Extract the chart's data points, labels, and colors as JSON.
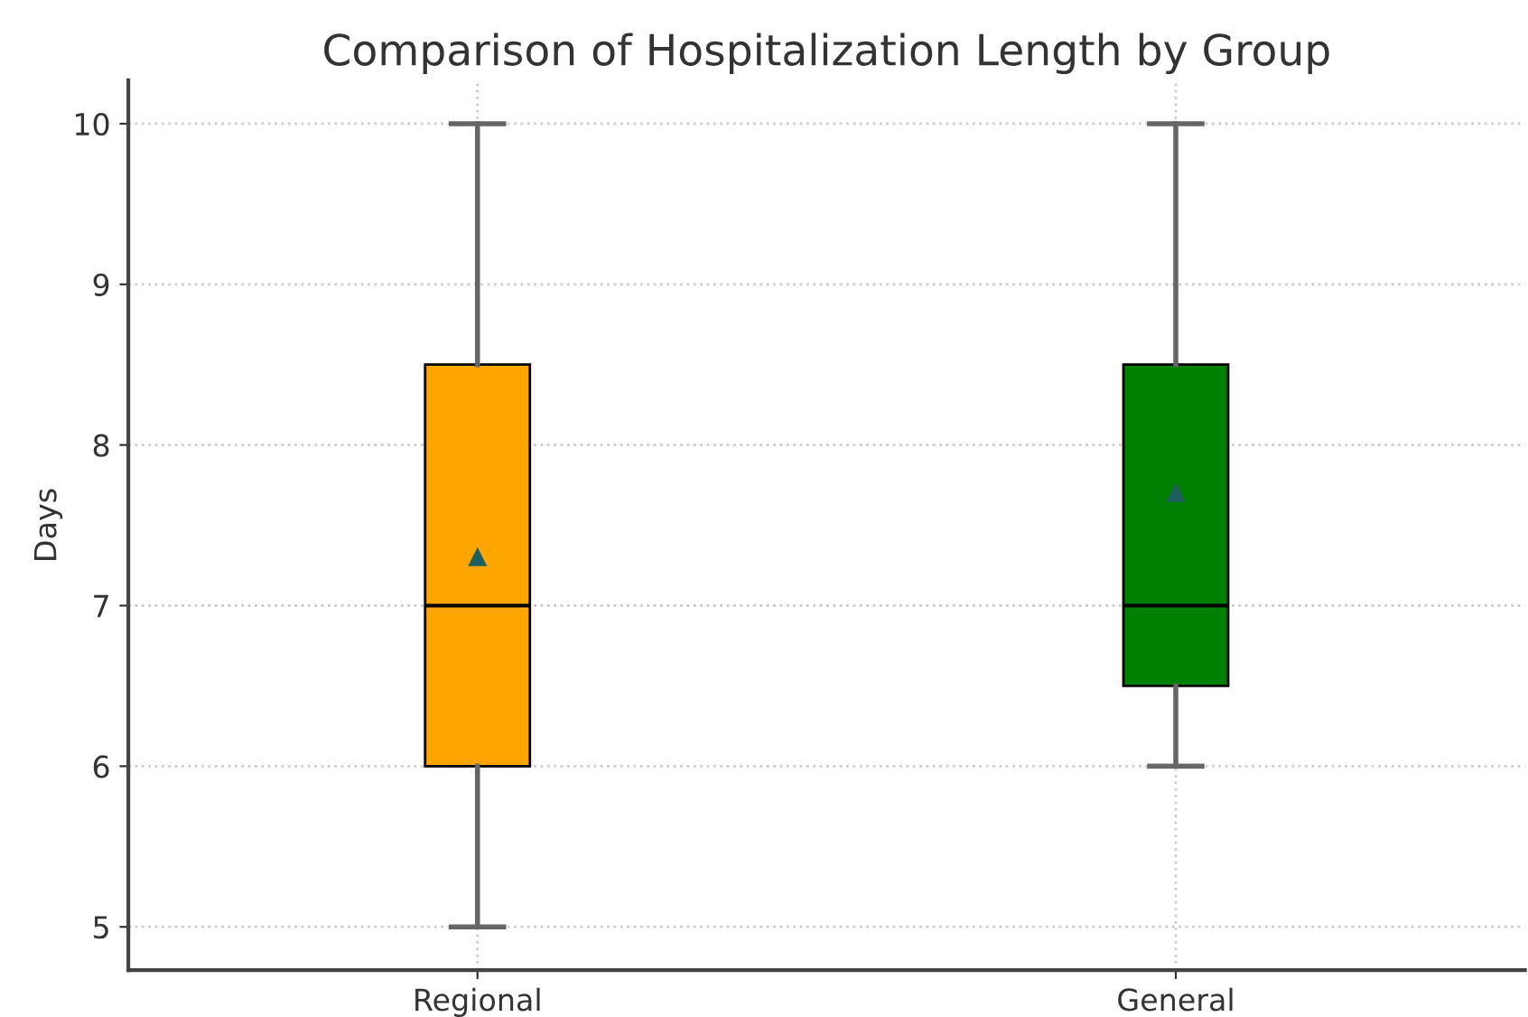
{
  "chart_data": {
    "type": "box",
    "title": "Comparison of Hospitalization Length by Group",
    "ylabel": "Days",
    "categories": [
      "Regional",
      "General"
    ],
    "series": [
      {
        "color": "#ffa500",
        "boxes": [
          {
            "low": 5,
            "q1": 6,
            "median": 7,
            "q3": 8.5,
            "high": 10,
            "mean": 7.3
          },
          null
        ]
      },
      {
        "color": "#008000",
        "boxes": [
          null,
          {
            "low": 6,
            "q1": 6.5,
            "median": 7,
            "q3": 8.5,
            "high": 10,
            "mean": 7.7
          }
        ]
      }
    ],
    "ylim": [
      4.73,
      10.27
    ],
    "yticks": [
      5,
      6,
      7,
      8,
      9,
      10
    ],
    "grid": true,
    "marker": "triangle"
  }
}
